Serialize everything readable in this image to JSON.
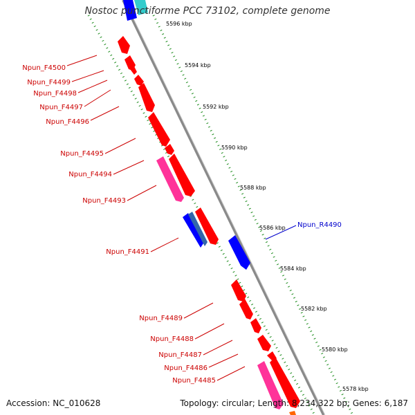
{
  "title": "Nostoc punctiforme PCC 73102, complete genome",
  "accession": "Accession: NC_010628",
  "topology": "Topology: circular; Length: 8,234,322 bp; Genes: 6,187",
  "colors": {
    "gene_forward": "#ff0000",
    "gene_pink": "#ff3399",
    "gene_blue": "#0000ff",
    "gene_cyan": "#33cccc",
    "label_red": "#cc0000",
    "label_blue": "#0000cc",
    "backbone": "#888888",
    "tick_green": "#006600"
  },
  "scale_labels": [
    "5596 kbp",
    "5594 kbp",
    "5592 kbp",
    "5590 kbp",
    "5588 kbp",
    "5586 kbp",
    "5584 kbp",
    "5582 kbp",
    "5580 kbp",
    "5578 kbp"
  ],
  "gene_labels": [
    {
      "text": "Npun_F4500",
      "strand": "forward"
    },
    {
      "text": "Npun_F4499",
      "strand": "forward"
    },
    {
      "text": "Npun_F4498",
      "strand": "forward"
    },
    {
      "text": "Npun_F4497",
      "strand": "forward"
    },
    {
      "text": "Npun_F4496",
      "strand": "forward"
    },
    {
      "text": "Npun_F4495",
      "strand": "forward"
    },
    {
      "text": "Npun_F4494",
      "strand": "forward"
    },
    {
      "text": "Npun_F4493",
      "strand": "forward"
    },
    {
      "text": "Npun_F4491",
      "strand": "forward"
    },
    {
      "text": "Npun_R4490",
      "strand": "reverse"
    },
    {
      "text": "Npun_F4489",
      "strand": "forward"
    },
    {
      "text": "Npun_F4488",
      "strand": "forward"
    },
    {
      "text": "Npun_F4487",
      "strand": "forward"
    },
    {
      "text": "Npun_F4486",
      "strand": "forward"
    },
    {
      "text": "Npun_F4485",
      "strand": "forward"
    }
  ]
}
